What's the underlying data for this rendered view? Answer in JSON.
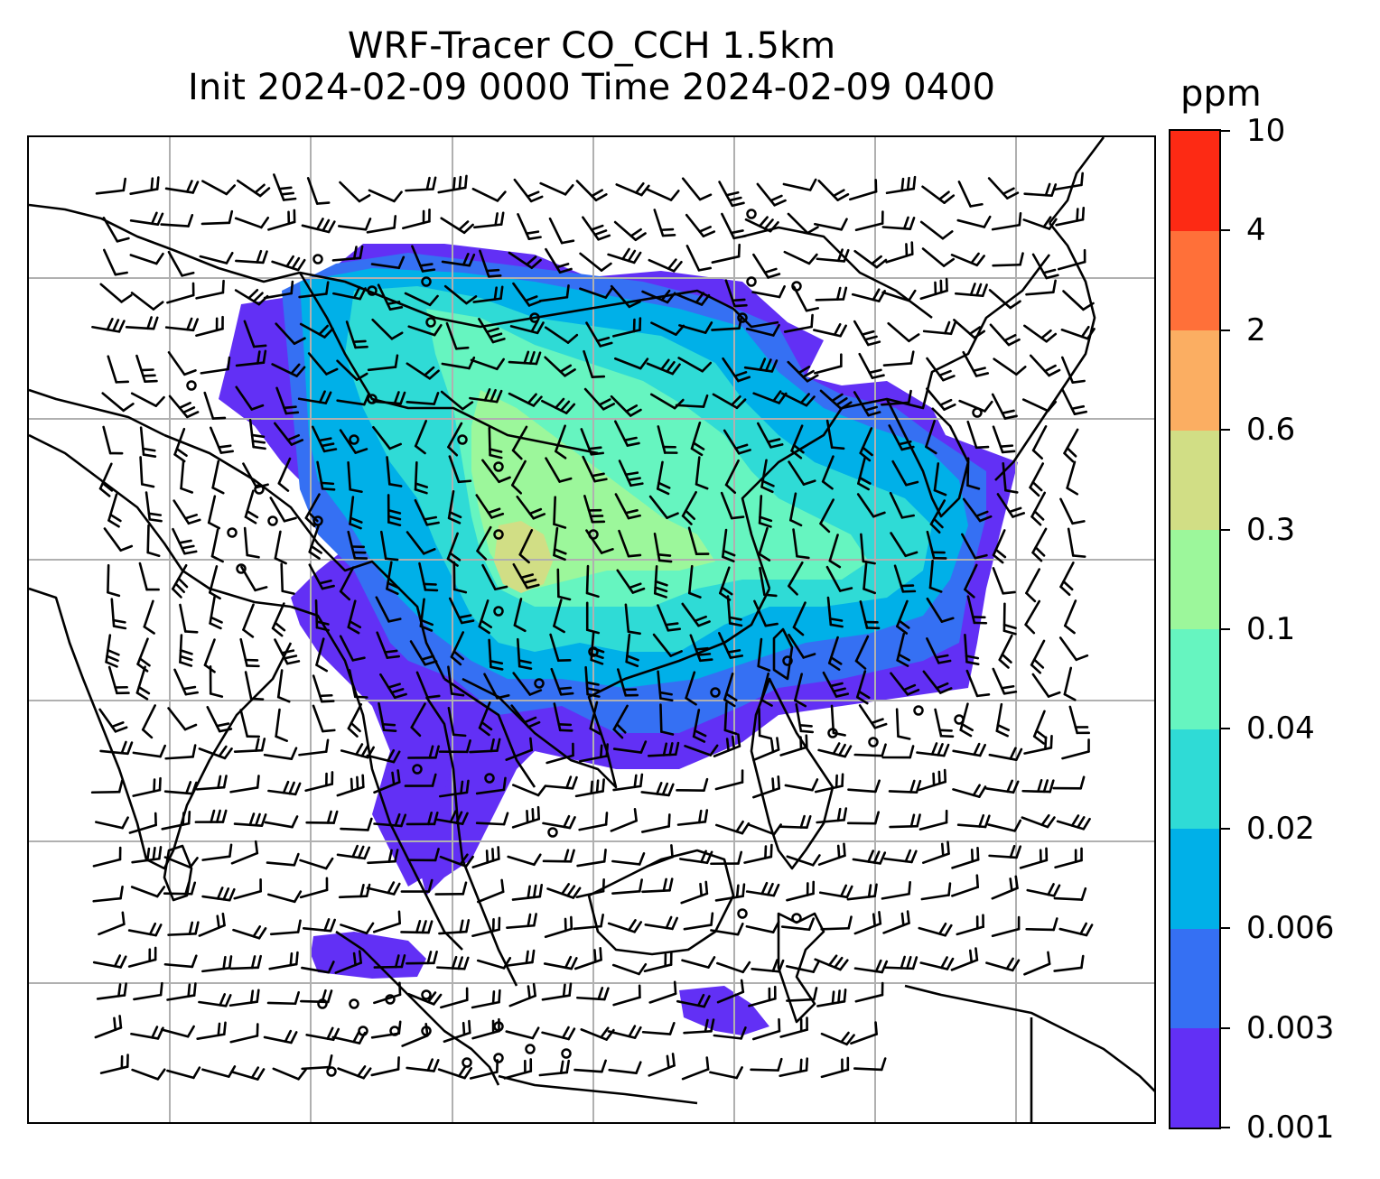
{
  "title": {
    "line1": "WRF-Tracer CO_CCH 1.5km",
    "line2": "Init 2024-02-09 0000 Time 2024-02-09 0400"
  },
  "colorbar": {
    "unit": "ppm",
    "ticks": [
      "0.001",
      "0.003",
      "0.006",
      "0.02",
      "0.04",
      "0.1",
      "0.3",
      "0.6",
      "2",
      "4",
      "10"
    ],
    "colors": [
      "#6230f5",
      "#3570f3",
      "#00b0e8",
      "#2fdbd6",
      "#66f5c0",
      "#9cf79b",
      "#d1de85",
      "#fbae62",
      "#ff7039",
      "#fd2a14"
    ]
  },
  "map": {
    "gridlines": true,
    "grid_color": "#b0b0b0",
    "coastline_color": "#000000",
    "barb_color": "#000000"
  }
}
